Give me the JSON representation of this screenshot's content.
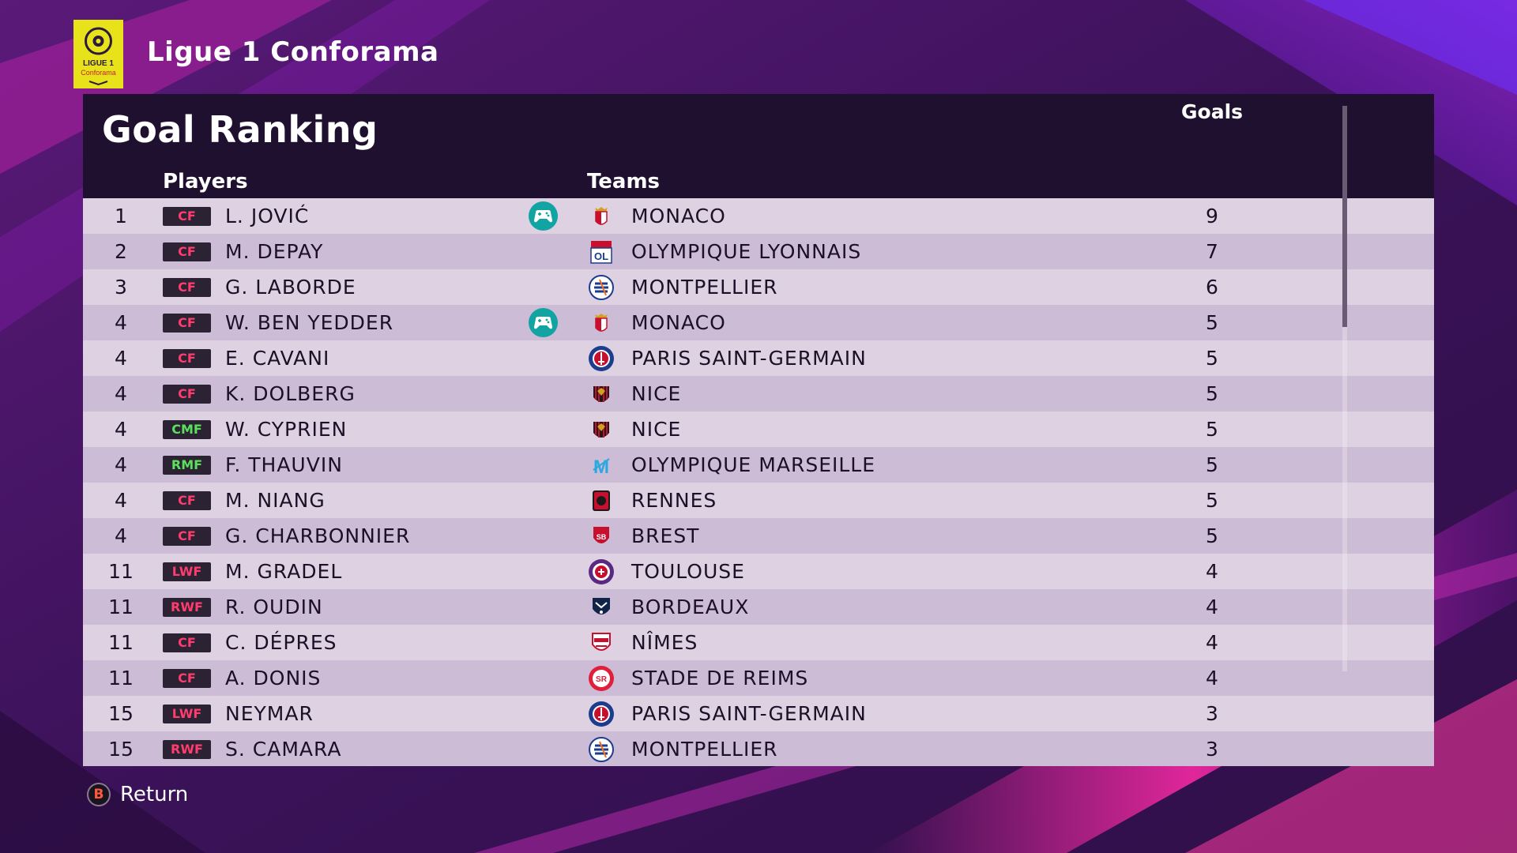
{
  "league": {
    "title": "Ligue 1 Conforama",
    "logo_lines": [
      "LIGUE 1",
      "Conforama"
    ],
    "logo_color": "#e8e21a"
  },
  "screen": {
    "title": "Goal Ranking",
    "columns": {
      "players": "Players",
      "teams": "Teams",
      "goals": "Goals"
    }
  },
  "rows": [
    {
      "rank": "1",
      "position": "CF",
      "pos_color": "red",
      "player": "L. JOVIĆ",
      "controlled": true,
      "crest": "monaco",
      "team": "MONACO",
      "goals": "9"
    },
    {
      "rank": "2",
      "position": "CF",
      "pos_color": "red",
      "player": "M. DEPAY",
      "controlled": false,
      "crest": "lyon",
      "team": "OLYMPIQUE LYONNAIS",
      "goals": "7"
    },
    {
      "rank": "3",
      "position": "CF",
      "pos_color": "red",
      "player": "G. LABORDE",
      "controlled": false,
      "crest": "montpellier",
      "team": "MONTPELLIER",
      "goals": "6"
    },
    {
      "rank": "4",
      "position": "CF",
      "pos_color": "red",
      "player": "W. BEN YEDDER",
      "controlled": true,
      "crest": "monaco",
      "team": "MONACO",
      "goals": "5"
    },
    {
      "rank": "4",
      "position": "CF",
      "pos_color": "red",
      "player": "E. CAVANI",
      "controlled": false,
      "crest": "psg",
      "team": "PARIS SAINT-GERMAIN",
      "goals": "5"
    },
    {
      "rank": "4",
      "position": "CF",
      "pos_color": "red",
      "player": "K. DOLBERG",
      "controlled": false,
      "crest": "nice",
      "team": "NICE",
      "goals": "5"
    },
    {
      "rank": "4",
      "position": "CMF",
      "pos_color": "green",
      "player": "W. CYPRIEN",
      "controlled": false,
      "crest": "nice",
      "team": "NICE",
      "goals": "5"
    },
    {
      "rank": "4",
      "position": "RMF",
      "pos_color": "green",
      "player": "F. THAUVIN",
      "controlled": false,
      "crest": "marseille",
      "team": "OLYMPIQUE MARSEILLE",
      "goals": "5"
    },
    {
      "rank": "4",
      "position": "CF",
      "pos_color": "red",
      "player": "M. NIANG",
      "controlled": false,
      "crest": "rennes",
      "team": "RENNES",
      "goals": "5"
    },
    {
      "rank": "4",
      "position": "CF",
      "pos_color": "red",
      "player": "G. CHARBONNIER",
      "controlled": false,
      "crest": "brest",
      "team": "BREST",
      "goals": "5"
    },
    {
      "rank": "11",
      "position": "LWF",
      "pos_color": "red",
      "player": "M. GRADEL",
      "controlled": false,
      "crest": "toulouse",
      "team": "TOULOUSE",
      "goals": "4"
    },
    {
      "rank": "11",
      "position": "RWF",
      "pos_color": "red",
      "player": "R. OUDIN",
      "controlled": false,
      "crest": "bordeaux",
      "team": "BORDEAUX",
      "goals": "4"
    },
    {
      "rank": "11",
      "position": "CF",
      "pos_color": "red",
      "player": "C. DÉPRES",
      "controlled": false,
      "crest": "nimes",
      "team": "NÎMES",
      "goals": "4"
    },
    {
      "rank": "11",
      "position": "CF",
      "pos_color": "red",
      "player": "A. DONIS",
      "controlled": false,
      "crest": "reims",
      "team": "STADE DE REIMS",
      "goals": "4"
    },
    {
      "rank": "15",
      "position": "LWF",
      "pos_color": "red",
      "player": "NEYMAR",
      "controlled": false,
      "crest": "psg",
      "team": "PARIS SAINT-GERMAIN",
      "goals": "3"
    },
    {
      "rank": "15",
      "position": "RWF",
      "pos_color": "red",
      "player": "S. CAMARA",
      "controlled": false,
      "crest": "montpellier",
      "team": "MONTPELLIER",
      "goals": "3"
    }
  ],
  "footer": {
    "button_glyph": "B",
    "return_label": "Return"
  },
  "colors": {
    "pos_red": "#ff3c6e",
    "pos_green": "#5be05b",
    "controller": "#12a3a3"
  }
}
